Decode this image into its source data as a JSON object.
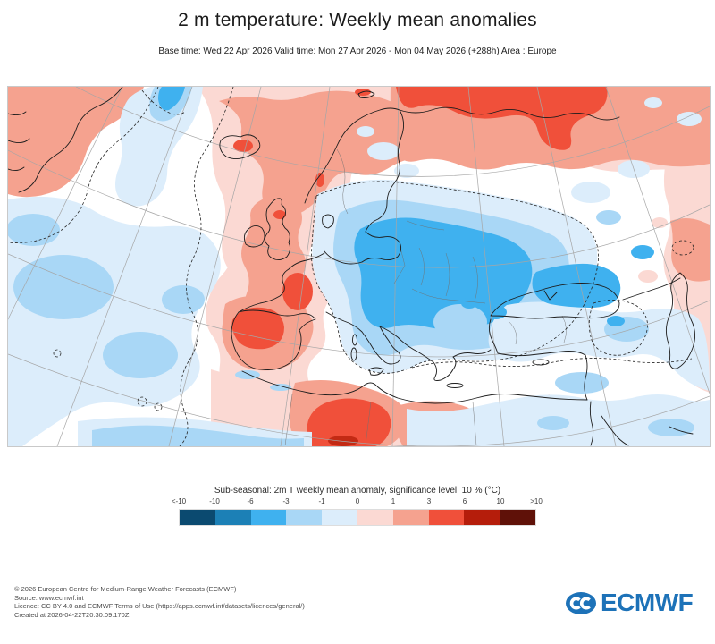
{
  "header": {
    "title": "2 m temperature: Weekly mean anomalies",
    "subtitle": "Base time: Wed 22 Apr 2026 Valid time: Mon 27 Apr 2026 - Mon 04 May 2026 (+288h) Area : Europe"
  },
  "map": {
    "area": "Europe",
    "palette": {
      "bright_blue": "#3fb1ef",
      "light_blue": "#a9d7f6",
      "pale_blue": "#dcedfb",
      "pale_pink": "#fbd9d3",
      "salmon": "#f5a28f",
      "orange_red": "#f0503a",
      "dark_red": "#c32a14"
    },
    "anomaly_regions": [
      "Warm anomaly over Greenland, Iceland, UK, Norway and the Norwegian Sea",
      "Strong warm anomaly over Arctic Russia (Novaya Zemlya area)",
      "Strong warm anomaly over central Spain, France and northwest Africa",
      "Cold anomaly core over eastern Europe (Baltic states, Belarus, Ukraine)",
      "Cold anomaly over the Black Sea, Turkey and the eastern Mediterranean",
      "Near-neutral white band across central Europe and the mid-Atlantic"
    ]
  },
  "legend": {
    "title": "Sub-seasonal: 2m T weekly mean anomaly, significance level: 10 % (°C)",
    "tick_labels": [
      "<-10",
      "-10",
      "-6",
      "-3",
      "-1",
      "0",
      "1",
      "3",
      "6",
      "10",
      ">10"
    ],
    "colors": [
      "#0b4a70",
      "#1c80b6",
      "#3fb1ef",
      "#a9d7f6",
      "#dcedfb",
      "#fbd9d3",
      "#f5a28f",
      "#f0503a",
      "#b51d0b",
      "#5f1108"
    ]
  },
  "footer": {
    "lines": [
      "© 2026 European Centre for Medium-Range Weather Forecasts (ECMWF)",
      "Source: www.ecmwf.int",
      "Licence: CC BY 4.0 and ECMWF Terms of Use (https://apps.ecmwf.int/datasets/licences/general/)",
      "Created at 2026-04-22T20:30:09.170Z"
    ]
  },
  "logo": {
    "text": "ECMWF",
    "color": "#1d72b8"
  }
}
